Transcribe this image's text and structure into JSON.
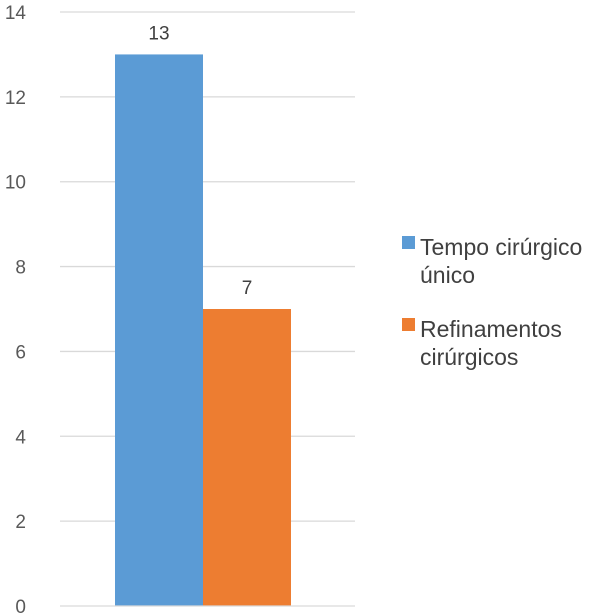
{
  "chart_data": {
    "type": "bar",
    "categories": [
      ""
    ],
    "series": [
      {
        "name": "Tempo cirúrgico único",
        "values": [
          13
        ],
        "color": "#5B9BD5",
        "legend_lines": [
          "Tempo cirúrgico",
          "único"
        ]
      },
      {
        "name": "Refinamentos cirúrgicos",
        "values": [
          7
        ],
        "color": "#ED7D31",
        "legend_lines": [
          "Refinamentos",
          "cirúrgicos"
        ]
      }
    ],
    "ylim": [
      0,
      14
    ],
    "yticks": [
      "0",
      "2",
      "4",
      "6",
      "8",
      "10",
      "12",
      "14"
    ],
    "data_labels": [
      "13",
      "7"
    ],
    "title": "",
    "xlabel": "",
    "ylabel": "",
    "grid": true,
    "legend_position": "right"
  }
}
